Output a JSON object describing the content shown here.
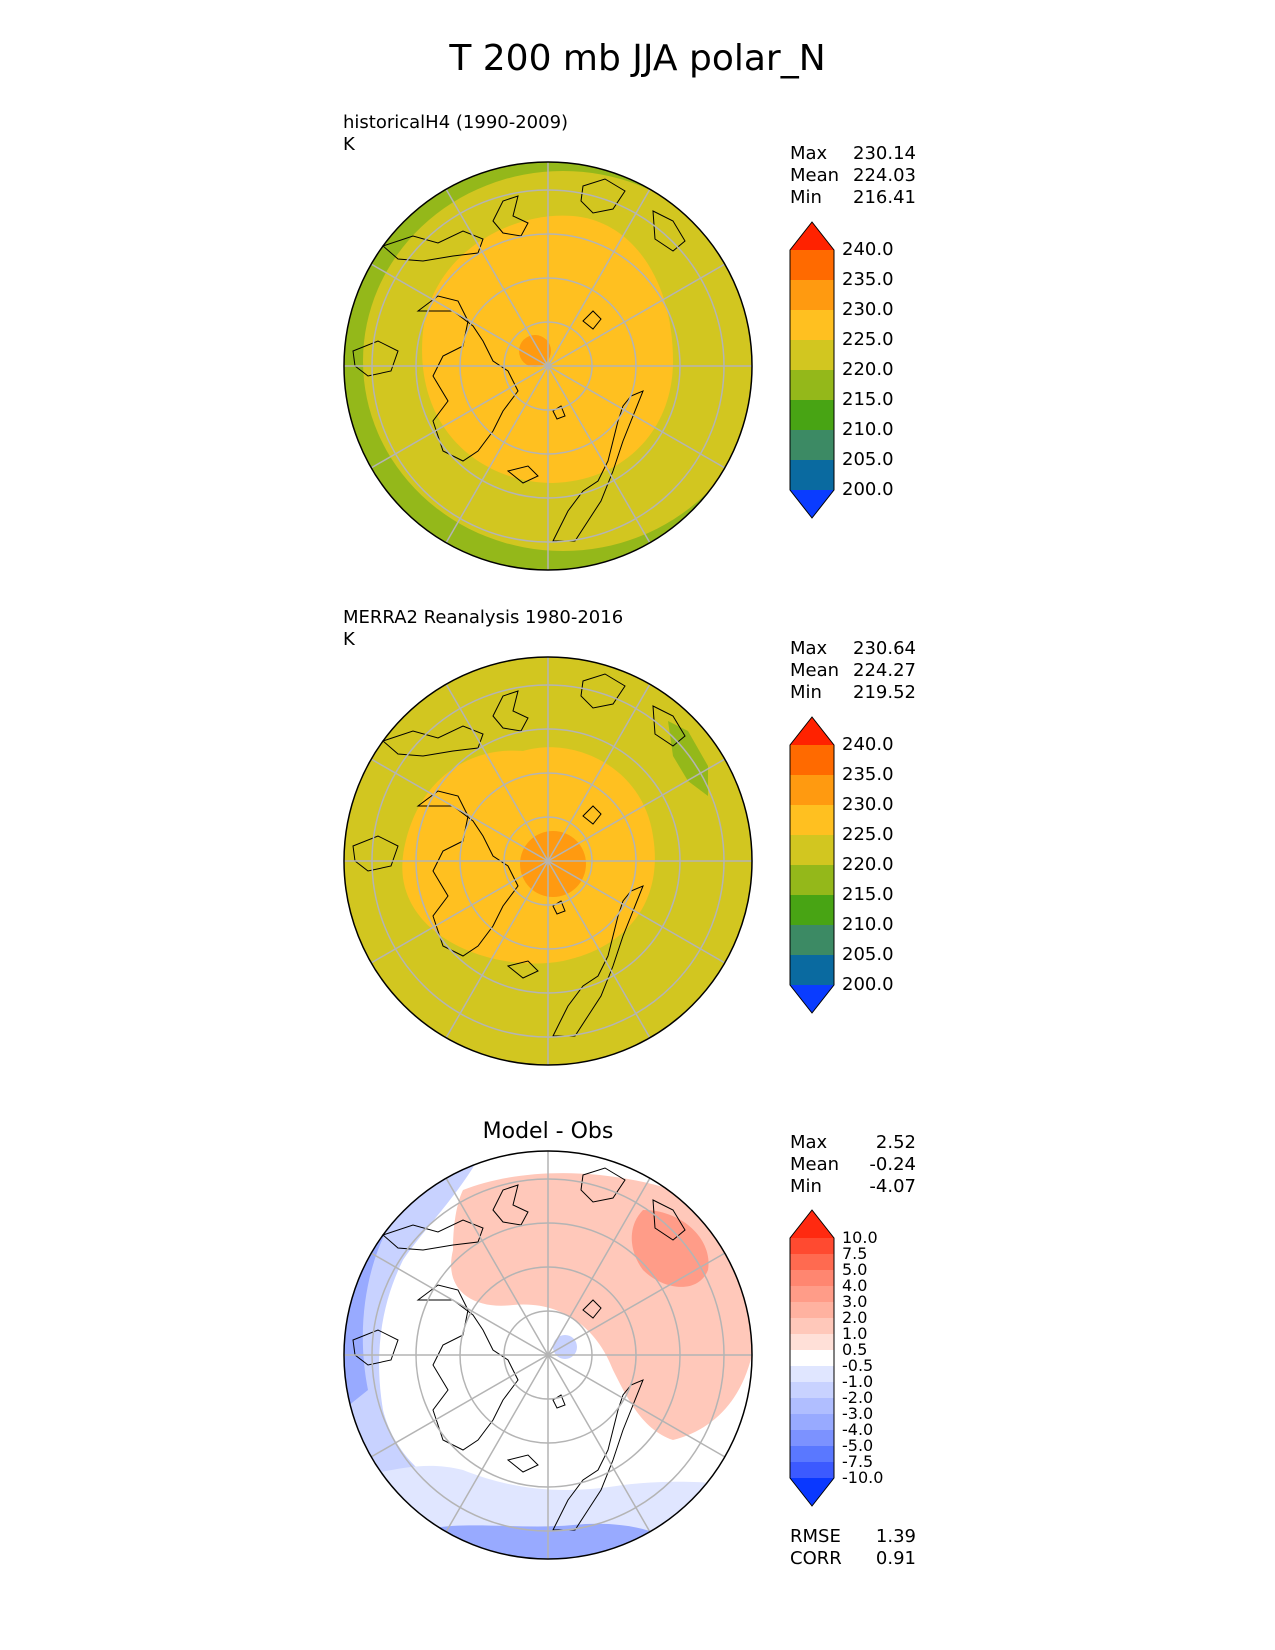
{
  "main_title": "T 200 mb JJA polar_N",
  "panels": [
    {
      "title_line1": "historicalH4 (1990-2009)",
      "title_line2": "K",
      "stats": {
        "max_label": "Max",
        "max": "230.14",
        "mean_label": "Mean",
        "mean": "224.03",
        "min_label": "Min",
        "min": "216.41"
      }
    },
    {
      "title_line1": "MERRA2 Reanalysis 1980-2016",
      "title_line2": "K",
      "stats": {
        "max_label": "Max",
        "max": "230.64",
        "mean_label": "Mean",
        "mean": "224.27",
        "min_label": "Min",
        "min": "219.52"
      }
    },
    {
      "title": "Model - Obs",
      "stats": {
        "max_label": "Max",
        "max": "2.52",
        "mean_label": "Mean",
        "mean": "-0.24",
        "min_label": "Min",
        "min": "-4.07"
      },
      "metrics": {
        "rmse_label": "RMSE",
        "rmse": "1.39",
        "corr_label": "CORR",
        "corr": "0.91"
      }
    }
  ],
  "colorbar_abs": {
    "labels": [
      "240.0",
      "235.0",
      "230.0",
      "225.0",
      "220.0",
      "215.0",
      "210.0",
      "205.0",
      "200.0"
    ],
    "colors": [
      "#ff2200",
      "#ff6a00",
      "#ff9a10",
      "#ffc020",
      "#d2c620",
      "#94b81a",
      "#48a414",
      "#3c8a64",
      "#0a6aa0",
      "#0a3cff"
    ]
  },
  "colorbar_diff": {
    "labels": [
      "10.0",
      "7.5",
      "5.0",
      "4.0",
      "3.0",
      "2.0",
      "1.0",
      "0.5",
      "-0.5",
      "-1.0",
      "-2.0",
      "-3.0",
      "-4.0",
      "-5.0",
      "-7.5",
      "-10.0"
    ],
    "colors": [
      "#ff2a10",
      "#ff4a30",
      "#ff6a50",
      "#ff8670",
      "#ff9c88",
      "#ffb2a0",
      "#ffc8ba",
      "#ffe0d8",
      "#ffffff",
      "#e0e6ff",
      "#c8d2ff",
      "#b0beff",
      "#98aaff",
      "#7c92ff",
      "#5a78ff",
      "#3c5aff",
      "#0a38ff"
    ]
  }
}
